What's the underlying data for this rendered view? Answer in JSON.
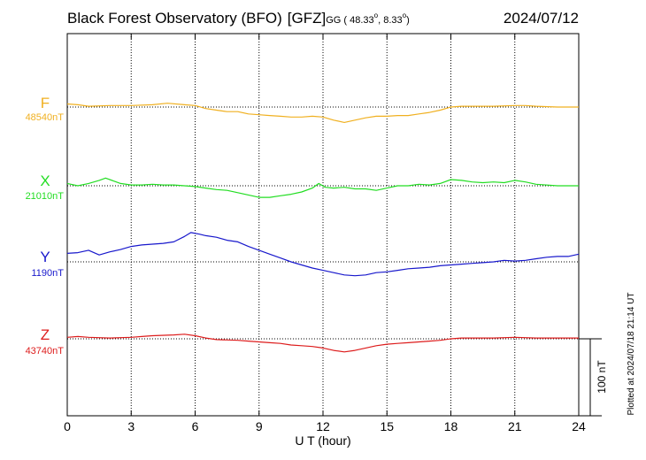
{
  "header": {
    "station": "Black Forest Observatory (BFO)",
    "institute": "[GFZ]",
    "coords_prefix": "GG ( 48.33",
    "coords_mid": ",   8.33",
    "coords_suffix": ")",
    "deg": "o",
    "date": "2024/07/12"
  },
  "footer": {
    "plotted": "Plotted at 2024/07/18 21:14 UT",
    "scale_label": "100 nT"
  },
  "chart_data": {
    "type": "line",
    "title": "Black Forest Observatory (BFO)",
    "xlabel": "U T (hour)",
    "ylabel": "",
    "x_ticks": [
      0,
      3,
      6,
      9,
      12,
      15,
      18,
      21,
      24
    ],
    "xlim": [
      0,
      24
    ],
    "scale_bar_nT": 100,
    "grid": true,
    "series": [
      {
        "name": "F",
        "baseline_label": "48540nT",
        "baseline_nT": 48540,
        "color": "#f0b020",
        "points": [
          [
            0,
            4
          ],
          [
            0.5,
            3
          ],
          [
            1,
            1
          ],
          [
            2,
            2
          ],
          [
            3,
            2
          ],
          [
            4,
            3
          ],
          [
            4.7,
            5
          ],
          [
            5.5,
            3
          ],
          [
            6,
            2
          ],
          [
            6.5,
            -2
          ],
          [
            7,
            -4
          ],
          [
            7.5,
            -6
          ],
          [
            8,
            -6
          ],
          [
            8.5,
            -9
          ],
          [
            9,
            -10
          ],
          [
            9.5,
            -11
          ],
          [
            10,
            -12
          ],
          [
            10.5,
            -13
          ],
          [
            11,
            -13
          ],
          [
            11.5,
            -12
          ],
          [
            12,
            -13
          ],
          [
            12.5,
            -17
          ],
          [
            13,
            -20
          ],
          [
            13.5,
            -17
          ],
          [
            14,
            -14
          ],
          [
            14.5,
            -12
          ],
          [
            15,
            -12
          ],
          [
            15.5,
            -11
          ],
          [
            16,
            -11
          ],
          [
            16.5,
            -9
          ],
          [
            17,
            -7
          ],
          [
            17.5,
            -4
          ],
          [
            18,
            0
          ],
          [
            18.5,
            1
          ],
          [
            19,
            1
          ],
          [
            20,
            1
          ],
          [
            21,
            2
          ],
          [
            21.5,
            2
          ],
          [
            22,
            1
          ],
          [
            23,
            0
          ],
          [
            24,
            0
          ]
        ]
      },
      {
        "name": "X",
        "baseline_label": "21010nT",
        "baseline_nT": 21010,
        "color": "#22dd22",
        "points": [
          [
            0,
            3
          ],
          [
            0.5,
            0
          ],
          [
            1,
            3
          ],
          [
            1.5,
            7
          ],
          [
            1.8,
            10
          ],
          [
            2.2,
            6
          ],
          [
            2.5,
            3
          ],
          [
            3,
            1
          ],
          [
            3.5,
            1
          ],
          [
            4,
            2
          ],
          [
            4.5,
            1
          ],
          [
            5,
            1
          ],
          [
            5.5,
            0
          ],
          [
            6,
            -1
          ],
          [
            6.5,
            -3
          ],
          [
            7,
            -5
          ],
          [
            7.5,
            -6
          ],
          [
            8,
            -9
          ],
          [
            8.5,
            -12
          ],
          [
            9,
            -15
          ],
          [
            9.5,
            -15
          ],
          [
            10,
            -13
          ],
          [
            10.5,
            -11
          ],
          [
            11,
            -8
          ],
          [
            11.5,
            -3
          ],
          [
            11.8,
            3
          ],
          [
            12.1,
            -2
          ],
          [
            12.5,
            -3
          ],
          [
            13,
            -2
          ],
          [
            13.5,
            -4
          ],
          [
            14,
            -4
          ],
          [
            14.5,
            -6
          ],
          [
            15,
            -3
          ],
          [
            15.5,
            0
          ],
          [
            16,
            0
          ],
          [
            16.5,
            2
          ],
          [
            17,
            1
          ],
          [
            17.5,
            3
          ],
          [
            18,
            8
          ],
          [
            18.5,
            7
          ],
          [
            19,
            5
          ],
          [
            19.5,
            4
          ],
          [
            20,
            5
          ],
          [
            20.5,
            4
          ],
          [
            21,
            7
          ],
          [
            21.5,
            5
          ],
          [
            22,
            2
          ],
          [
            23,
            0
          ],
          [
            24,
            0
          ]
        ]
      },
      {
        "name": "Y",
        "baseline_label": "1190nT",
        "baseline_nT": 1190,
        "color": "#1818cc",
        "points": [
          [
            0,
            11
          ],
          [
            0.5,
            12
          ],
          [
            1,
            15
          ],
          [
            1.5,
            9
          ],
          [
            2,
            13
          ],
          [
            2.5,
            16
          ],
          [
            3,
            20
          ],
          [
            3.5,
            22
          ],
          [
            4,
            23
          ],
          [
            4.5,
            24
          ],
          [
            5,
            26
          ],
          [
            5.5,
            33
          ],
          [
            5.8,
            38
          ],
          [
            6.2,
            36
          ],
          [
            6.5,
            34
          ],
          [
            7,
            32
          ],
          [
            7.5,
            28
          ],
          [
            8,
            26
          ],
          [
            8.5,
            20
          ],
          [
            9,
            15
          ],
          [
            9.5,
            10
          ],
          [
            10,
            5
          ],
          [
            10.5,
            0
          ],
          [
            11,
            -4
          ],
          [
            11.5,
            -8
          ],
          [
            12,
            -11
          ],
          [
            12.5,
            -14
          ],
          [
            13,
            -17
          ],
          [
            13.5,
            -18
          ],
          [
            14,
            -17
          ],
          [
            14.5,
            -14
          ],
          [
            15,
            -13
          ],
          [
            15.5,
            -11
          ],
          [
            16,
            -9
          ],
          [
            16.5,
            -8
          ],
          [
            17,
            -7
          ],
          [
            17.5,
            -5
          ],
          [
            18,
            -4
          ],
          [
            18.5,
            -3
          ],
          [
            19,
            -2
          ],
          [
            19.5,
            -1
          ],
          [
            20,
            0
          ],
          [
            20.5,
            2
          ],
          [
            21,
            1
          ],
          [
            21.5,
            2
          ],
          [
            22,
            4
          ],
          [
            22.5,
            6
          ],
          [
            23,
            7
          ],
          [
            23.5,
            7
          ],
          [
            24,
            10
          ]
        ]
      },
      {
        "name": "Z",
        "baseline_label": "43740nT",
        "baseline_nT": 43740,
        "color": "#dd1c1c",
        "points": [
          [
            0,
            2
          ],
          [
            0.5,
            3
          ],
          [
            1,
            2
          ],
          [
            2,
            1
          ],
          [
            3,
            2
          ],
          [
            3.5,
            3
          ],
          [
            4,
            4
          ],
          [
            5,
            5
          ],
          [
            5.5,
            6
          ],
          [
            6,
            4
          ],
          [
            6.5,
            1
          ],
          [
            7,
            -1
          ],
          [
            8,
            -2
          ],
          [
            8.5,
            -3
          ],
          [
            9,
            -4
          ],
          [
            9.5,
            -5
          ],
          [
            10,
            -6
          ],
          [
            10.5,
            -8
          ],
          [
            11,
            -9
          ],
          [
            11.5,
            -10
          ],
          [
            12,
            -12
          ],
          [
            12.5,
            -15
          ],
          [
            13,
            -17
          ],
          [
            13.5,
            -15
          ],
          [
            14,
            -12
          ],
          [
            14.5,
            -9
          ],
          [
            15,
            -7
          ],
          [
            15.5,
            -6
          ],
          [
            16,
            -5
          ],
          [
            16.5,
            -4
          ],
          [
            17,
            -3
          ],
          [
            17.5,
            -2
          ],
          [
            18,
            0
          ],
          [
            18.5,
            1
          ],
          [
            19,
            1
          ],
          [
            20,
            1
          ],
          [
            21,
            2
          ],
          [
            22,
            1
          ],
          [
            23,
            1
          ],
          [
            24,
            1
          ]
        ]
      }
    ]
  }
}
